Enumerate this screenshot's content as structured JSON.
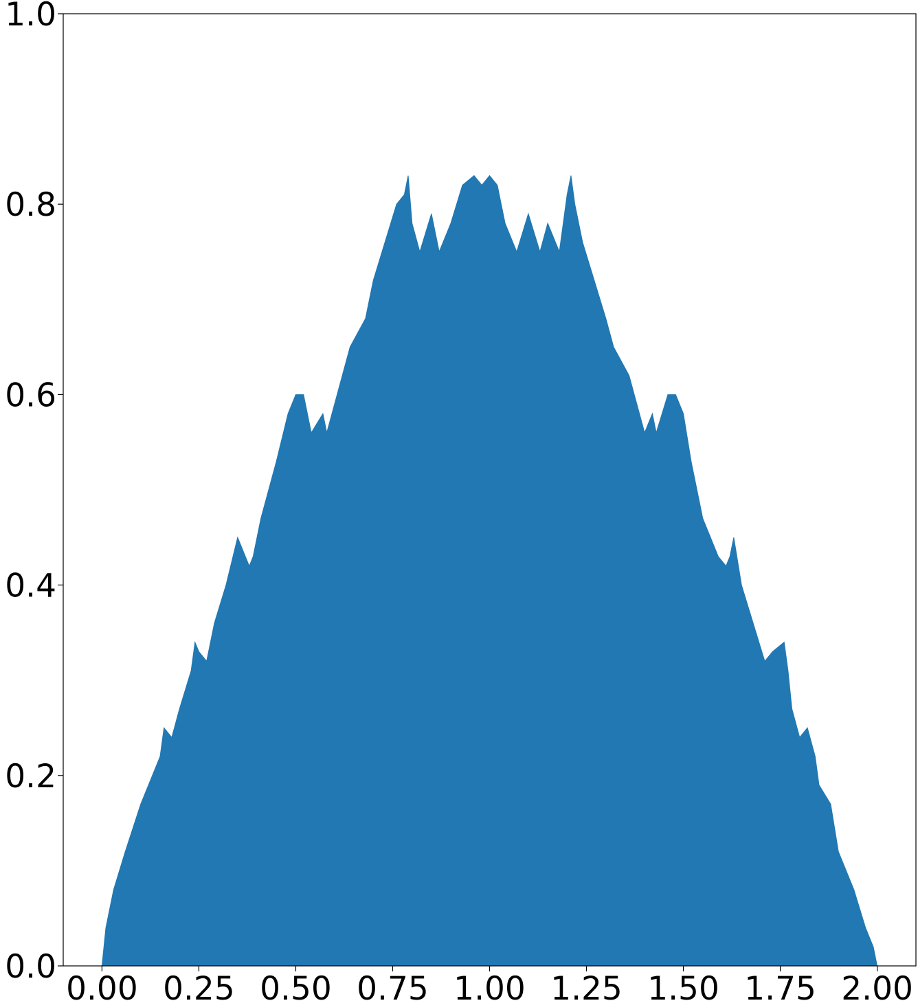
{
  "chart_data": {
    "type": "area",
    "title": "",
    "xlabel": "",
    "ylabel": "",
    "xlim": [
      -0.1,
      2.1
    ],
    "ylim": [
      0.0,
      1.0
    ],
    "grid": false,
    "legend": "none",
    "fill_color": "#2178b3",
    "x_ticks": [
      {
        "value": 0.0,
        "label": "0.00"
      },
      {
        "value": 0.25,
        "label": "0.25"
      },
      {
        "value": 0.5,
        "label": "0.50"
      },
      {
        "value": 0.75,
        "label": "0.75"
      },
      {
        "value": 1.0,
        "label": "1.00"
      },
      {
        "value": 1.25,
        "label": "1.25"
      },
      {
        "value": 1.5,
        "label": "1.50"
      },
      {
        "value": 1.75,
        "label": "1.75"
      },
      {
        "value": 2.0,
        "label": "2.00"
      }
    ],
    "y_ticks": [
      {
        "value": 0.0,
        "label": "0.0"
      },
      {
        "value": 0.2,
        "label": "0.2"
      },
      {
        "value": 0.4,
        "label": "0.4"
      },
      {
        "value": 0.6,
        "label": "0.6"
      },
      {
        "value": 0.8,
        "label": "0.8"
      },
      {
        "value": 1.0,
        "label": "1.0"
      }
    ],
    "series": [
      {
        "x": [
          0.0,
          0.01,
          0.03,
          0.06,
          0.1,
          0.12,
          0.15,
          0.16,
          0.18,
          0.2,
          0.23,
          0.24,
          0.25,
          0.27,
          0.29,
          0.32,
          0.35,
          0.37,
          0.38,
          0.39,
          0.41,
          0.45,
          0.48,
          0.5,
          0.52,
          0.54,
          0.57,
          0.58,
          0.6,
          0.62,
          0.64,
          0.68,
          0.7,
          0.73,
          0.76,
          0.78,
          0.79,
          0.8,
          0.82,
          0.85,
          0.87,
          0.9,
          0.93,
          0.96,
          0.98,
          1.0,
          1.02,
          1.04,
          1.07,
          1.1,
          1.13,
          1.15,
          1.18,
          1.2,
          1.21,
          1.22,
          1.24,
          1.27,
          1.3,
          1.32,
          1.36,
          1.38,
          1.4,
          1.42,
          1.43,
          1.46,
          1.48,
          1.5,
          1.52,
          1.55,
          1.59,
          1.61,
          1.62,
          1.63,
          1.65,
          1.68,
          1.71,
          1.73,
          1.76,
          1.77,
          1.78,
          1.8,
          1.82,
          1.84,
          1.85,
          1.88,
          1.9,
          1.94,
          1.97,
          1.99,
          2.0
        ],
        "y": [
          0.0,
          0.04,
          0.08,
          0.12,
          0.17,
          0.19,
          0.22,
          0.25,
          0.24,
          0.27,
          0.31,
          0.34,
          0.33,
          0.32,
          0.36,
          0.4,
          0.45,
          0.43,
          0.42,
          0.43,
          0.47,
          0.53,
          0.58,
          0.6,
          0.6,
          0.56,
          0.58,
          0.56,
          0.59,
          0.62,
          0.65,
          0.68,
          0.72,
          0.76,
          0.8,
          0.81,
          0.83,
          0.78,
          0.75,
          0.79,
          0.75,
          0.78,
          0.82,
          0.83,
          0.82,
          0.83,
          0.82,
          0.78,
          0.75,
          0.79,
          0.75,
          0.78,
          0.75,
          0.81,
          0.83,
          0.8,
          0.76,
          0.72,
          0.68,
          0.65,
          0.62,
          0.59,
          0.56,
          0.58,
          0.56,
          0.6,
          0.6,
          0.58,
          0.53,
          0.47,
          0.43,
          0.42,
          0.43,
          0.45,
          0.4,
          0.36,
          0.32,
          0.33,
          0.34,
          0.31,
          0.27,
          0.24,
          0.25,
          0.22,
          0.19,
          0.17,
          0.12,
          0.08,
          0.04,
          0.02,
          0.0
        ]
      }
    ]
  }
}
